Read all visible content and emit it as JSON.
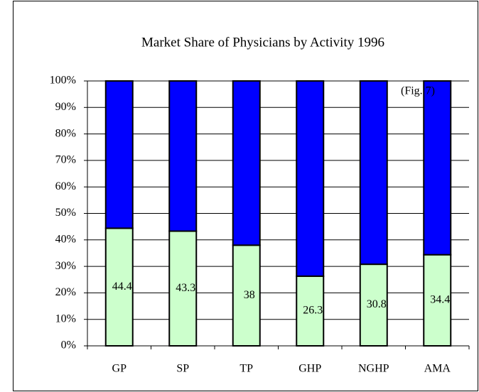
{
  "chart_data": {
    "type": "stacked_bar",
    "title": "Market Share of Physicians by Activity 1996",
    "annotation": "(Fig. 7)",
    "categories": [
      "GP",
      "SP",
      "TP",
      "GHP",
      "NGHP",
      "AMA"
    ],
    "series": [
      {
        "color": "#ccffcc",
        "values": [
          44.4,
          43.3,
          38,
          26.3,
          30.8,
          34.4
        ]
      },
      {
        "color": "#0000ff",
        "values": [
          55.6,
          56.7,
          62,
          73.7,
          69.2,
          65.6
        ]
      }
    ],
    "data_labels_series": 0,
    "ylim": [
      0,
      100
    ],
    "yticks": [
      {
        "value": 0,
        "label": "0%"
      },
      {
        "value": 10,
        "label": "10%"
      },
      {
        "value": 20,
        "label": "20%"
      },
      {
        "value": 30,
        "label": "30%"
      },
      {
        "value": 40,
        "label": "40%"
      },
      {
        "value": 50,
        "label": "50%"
      },
      {
        "value": 60,
        "label": "60%"
      },
      {
        "value": 70,
        "label": "70%"
      },
      {
        "value": 80,
        "label": "80%"
      },
      {
        "value": 90,
        "label": "90%"
      },
      {
        "value": 100,
        "label": "100%"
      }
    ],
    "grid": true
  }
}
